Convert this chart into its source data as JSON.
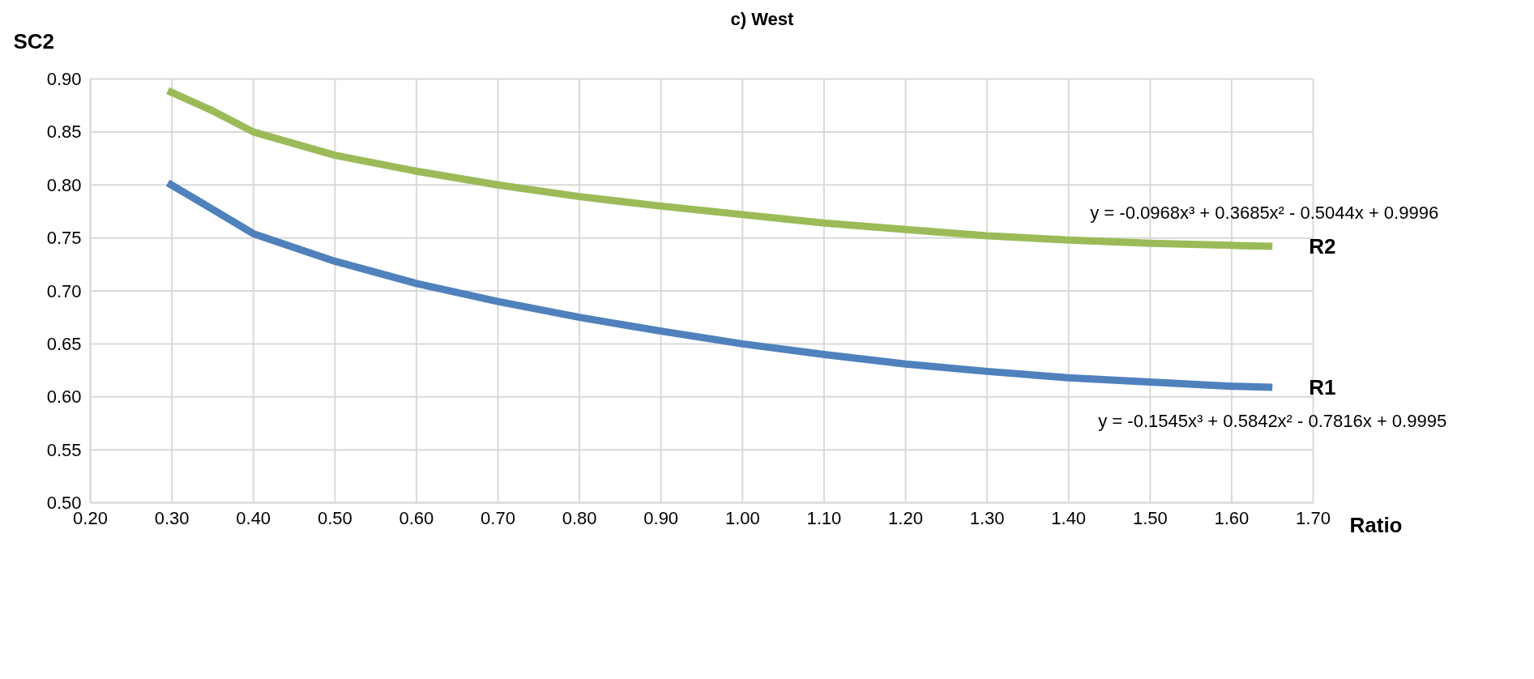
{
  "chart_data": {
    "type": "line",
    "title": "c) West",
    "xlabel": "Ratio",
    "ylabel": "SC2",
    "x": [
      0.295,
      0.35,
      0.4,
      0.5,
      0.6,
      0.7,
      0.8,
      0.9,
      1.0,
      1.1,
      1.2,
      1.3,
      1.4,
      1.5,
      1.6,
      1.65
    ],
    "series": [
      {
        "name": "R2",
        "color": "#9bbb59",
        "values": [
          0.889,
          0.87,
          0.85,
          0.828,
          0.813,
          0.8,
          0.789,
          0.78,
          0.772,
          0.764,
          0.758,
          0.752,
          0.748,
          0.745,
          0.743,
          0.742
        ]
      },
      {
        "name": "R1",
        "color": "#4f81bd",
        "values": [
          0.802,
          0.777,
          0.754,
          0.728,
          0.707,
          0.69,
          0.675,
          0.662,
          0.65,
          0.64,
          0.631,
          0.624,
          0.618,
          0.614,
          0.61,
          0.609
        ]
      }
    ],
    "annotations": [
      "y = -0.0968x³ + 0.3685x² - 0.5044x + 0.9996",
      "y = -0.1545x³ + 0.5842x² - 0.7816x + 0.9995"
    ],
    "xlim": [
      0.2,
      1.7
    ],
    "xticks": [
      {
        "value": 0.2,
        "label": "0.20"
      },
      {
        "value": 0.3,
        "label": "0.30"
      },
      {
        "value": 0.4,
        "label": "0.40"
      },
      {
        "value": 0.5,
        "label": "0.50"
      },
      {
        "value": 0.6,
        "label": "0.60"
      },
      {
        "value": 0.7,
        "label": "0.70"
      },
      {
        "value": 0.8,
        "label": "0.80"
      },
      {
        "value": 0.9,
        "label": "0.90"
      },
      {
        "value": 1.0,
        "label": "1.00"
      },
      {
        "value": 1.1,
        "label": "1.10"
      },
      {
        "value": 1.2,
        "label": "1.20"
      },
      {
        "value": 1.3,
        "label": "1.30"
      },
      {
        "value": 1.4,
        "label": "1.40"
      },
      {
        "value": 1.5,
        "label": "1.50"
      },
      {
        "value": 1.6,
        "label": "1.60"
      },
      {
        "value": 1.7,
        "label": "1.70"
      }
    ],
    "ylim": [
      0.5,
      0.9
    ],
    "yticks": [
      {
        "value": 0.5,
        "label": "0.50"
      },
      {
        "value": 0.55,
        "label": "0.55"
      },
      {
        "value": 0.6,
        "label": "0.60"
      },
      {
        "value": 0.65,
        "label": "0.65"
      },
      {
        "value": 0.7,
        "label": "0.70"
      },
      {
        "value": 0.75,
        "label": "0.75"
      },
      {
        "value": 0.8,
        "label": "0.80"
      },
      {
        "value": 0.85,
        "label": "0.85"
      },
      {
        "value": 0.9,
        "label": "0.90"
      }
    ],
    "grid": true,
    "legend": false,
    "marker": "none",
    "line_style": "solid"
  }
}
